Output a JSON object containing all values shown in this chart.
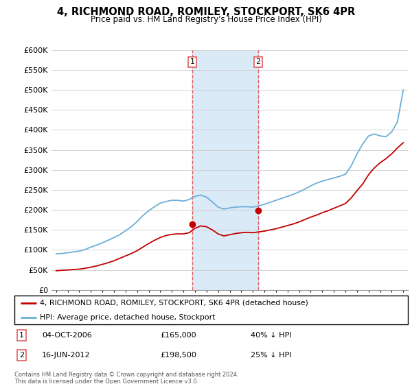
{
  "title": "4, RICHMOND ROAD, ROMILEY, STOCKPORT, SK6 4PR",
  "subtitle": "Price paid vs. HM Land Registry's House Price Index (HPI)",
  "property_label": "4, RICHMOND ROAD, ROMILEY, STOCKPORT, SK6 4PR (detached house)",
  "hpi_label": "HPI: Average price, detached house, Stockport",
  "footnote": "Contains HM Land Registry data © Crown copyright and database right 2024.\nThis data is licensed under the Open Government Licence v3.0.",
  "transaction1_date": "04-OCT-2006",
  "transaction1_price": "£165,000",
  "transaction1_hpi": "40% ↓ HPI",
  "transaction2_date": "16-JUN-2012",
  "transaction2_price": "£198,500",
  "transaction2_hpi": "25% ↓ HPI",
  "sale1_year": 2006.76,
  "sale1_price": 165000,
  "sale2_year": 2012.46,
  "sale2_price": 198500,
  "hpi_color": "#6aaed6",
  "price_color": "#C00000",
  "highlight_color": "#dbeaf7",
  "highlight_edge": "#e06060",
  "ylim": [
    0,
    600000
  ],
  "yticks": [
    0,
    50000,
    100000,
    150000,
    200000,
    250000,
    300000,
    350000,
    400000,
    450000,
    500000,
    550000,
    600000
  ],
  "hpi_years": [
    1995,
    1995.5,
    1996,
    1996.5,
    1997,
    1997.5,
    1998,
    1998.5,
    1999,
    1999.5,
    2000,
    2000.5,
    2001,
    2001.5,
    2002,
    2002.5,
    2003,
    2003.5,
    2004,
    2004.5,
    2005,
    2005.5,
    2006,
    2006.5,
    2007,
    2007.5,
    2008,
    2008.5,
    2009,
    2009.5,
    2010,
    2010.5,
    2011,
    2011.5,
    2012,
    2012.5,
    2013,
    2013.5,
    2014,
    2014.5,
    2015,
    2015.5,
    2016,
    2016.5,
    2017,
    2017.5,
    2018,
    2018.5,
    2019,
    2019.5,
    2020,
    2020.5,
    2021,
    2021.5,
    2022,
    2022.5,
    2023,
    2023.5,
    2024,
    2024.5,
    2025
  ],
  "hpi_values": [
    90000,
    91000,
    93000,
    95000,
    97000,
    101000,
    107000,
    112000,
    118000,
    124000,
    131000,
    138000,
    148000,
    158000,
    171000,
    186000,
    198000,
    208000,
    217000,
    221000,
    224000,
    224000,
    222000,
    226000,
    234000,
    237000,
    232000,
    220000,
    207000,
    202000,
    205000,
    207000,
    208000,
    208000,
    207000,
    210000,
    214000,
    219000,
    224000,
    229000,
    234000,
    239000,
    245000,
    252000,
    260000,
    267000,
    272000,
    276000,
    280000,
    284000,
    289000,
    310000,
    340000,
    365000,
    385000,
    390000,
    385000,
    383000,
    395000,
    420000,
    500000
  ],
  "price_years": [
    1995,
    1995.5,
    1996,
    1996.5,
    1997,
    1997.5,
    1998,
    1998.5,
    1999,
    1999.5,
    2000,
    2000.5,
    2001,
    2001.5,
    2002,
    2002.5,
    2003,
    2003.5,
    2004,
    2004.5,
    2005,
    2005.5,
    2006,
    2006.5,
    2007,
    2007.5,
    2008,
    2008.5,
    2009,
    2009.5,
    2010,
    2010.5,
    2011,
    2011.5,
    2012,
    2012.5,
    2013,
    2013.5,
    2014,
    2014.5,
    2015,
    2015.5,
    2016,
    2016.5,
    2017,
    2017.5,
    2018,
    2018.5,
    2019,
    2019.5,
    2020,
    2020.5,
    2021,
    2021.5,
    2022,
    2022.5,
    2023,
    2023.5,
    2024,
    2024.5,
    2025
  ],
  "price_values": [
    48000,
    49000,
    50000,
    51000,
    52000,
    54000,
    57000,
    60000,
    64000,
    68000,
    73000,
    79000,
    85000,
    91000,
    98000,
    107000,
    116000,
    124000,
    131000,
    136000,
    139000,
    140000,
    140000,
    143000,
    154000,
    160000,
    158000,
    150000,
    140000,
    135000,
    138000,
    141000,
    143000,
    144000,
    143000,
    145000,
    147000,
    150000,
    153000,
    157000,
    161000,
    165000,
    170000,
    176000,
    182000,
    187000,
    193000,
    198000,
    204000,
    210000,
    216000,
    230000,
    248000,
    265000,
    288000,
    305000,
    318000,
    328000,
    340000,
    355000,
    368000
  ]
}
